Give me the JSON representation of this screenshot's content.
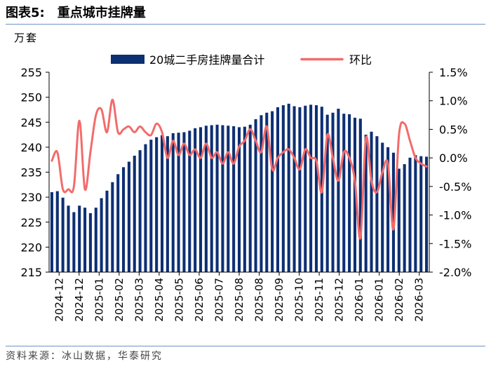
{
  "header": {
    "figure_number": "图表5:",
    "title": "重点城市挂牌量"
  },
  "unit_label": "万套",
  "source": "资料来源：冰山数据，华泰研究",
  "colors": {
    "bar": "#0d2f73",
    "line": "#f36b6b",
    "rule": "#6f94c6"
  },
  "chart_data": {
    "type": "bar+line",
    "title": "重点城市挂牌量",
    "series": [
      {
        "name": "20城二手房挂牌量合计",
        "type": "bar",
        "axis": "left",
        "values": [
          231.0,
          231.2,
          229.9,
          228.3,
          227.0,
          228.3,
          227.9,
          226.8,
          227.9,
          229.8,
          231.3,
          233.0,
          234.6,
          236.0,
          237.1,
          238.3,
          239.4,
          240.6,
          241.5,
          242.0,
          242.4,
          242.2,
          242.8,
          242.9,
          243.0,
          243.3,
          243.8,
          244.0,
          244.3,
          244.4,
          244.5,
          244.4,
          244.3,
          244.2,
          244.0,
          244.1,
          244.5,
          245.6,
          246.4,
          246.9,
          247.2,
          248.0,
          248.4,
          248.7,
          248.2,
          248.0,
          248.3,
          248.5,
          248.4,
          248.1,
          246.5,
          246.9,
          247.7,
          246.7,
          246.6,
          245.9,
          245.7,
          242.5,
          243.1,
          242.2,
          240.9,
          240.0,
          238.9,
          235.7,
          236.6,
          237.9,
          238.4,
          238.2,
          238.1
        ]
      },
      {
        "name": "环比",
        "type": "line",
        "axis": "right",
        "values": [
          -0.05,
          0.1,
          -0.55,
          -0.55,
          -0.5,
          0.65,
          -0.55,
          0.1,
          0.75,
          0.85,
          0.45,
          1.02,
          0.45,
          0.5,
          0.55,
          0.45,
          0.55,
          0.45,
          0.4,
          0.6,
          0.45,
          0.0,
          0.3,
          0.05,
          0.25,
          0.05,
          0.15,
          0.0,
          0.25,
          0.0,
          0.1,
          -0.1,
          0.1,
          -0.1,
          0.2,
          0.3,
          0.5,
          0.3,
          0.1,
          0.55,
          -0.2,
          0.0,
          0.1,
          0.15,
          0.0,
          -0.2,
          0.15,
          0.0,
          -0.05,
          -0.6,
          0.4,
          0.0,
          -0.4,
          0.1,
          0.0,
          -0.4,
          -1.4,
          0.35,
          -0.4,
          -0.6,
          -0.25,
          -0.1,
          -1.25,
          0.4,
          0.6,
          0.3,
          0.0,
          -0.1,
          -0.15
        ]
      }
    ],
    "legend": [
      "20城二手房挂牌量合计",
      "环比"
    ],
    "legend_position": "top",
    "x_tick_labels": [
      "2024-12",
      "2024-12",
      "2025-01",
      "2025-02",
      "2025-03",
      "2025-04",
      "2025-05",
      "2025-06",
      "2025-07",
      "2025-08",
      "2025-08",
      "2025-09",
      "2025-10",
      "2025-11",
      "2025-12",
      "2026-01",
      "2026-01",
      "2026-02",
      "2026-03"
    ],
    "y_left": {
      "min": 215,
      "max": 255,
      "step": 5,
      "tick_labels": [
        "215",
        "220",
        "225",
        "230",
        "235",
        "240",
        "245",
        "250",
        "255"
      ]
    },
    "y_right": {
      "min": -2.0,
      "max": 1.5,
      "step": 0.5,
      "tick_labels": [
        "-2.0%",
        "-1.5%",
        "-1.0%",
        "-0.5%",
        "0.0%",
        "0.5%",
        "1.0%",
        "1.5%"
      ]
    }
  }
}
